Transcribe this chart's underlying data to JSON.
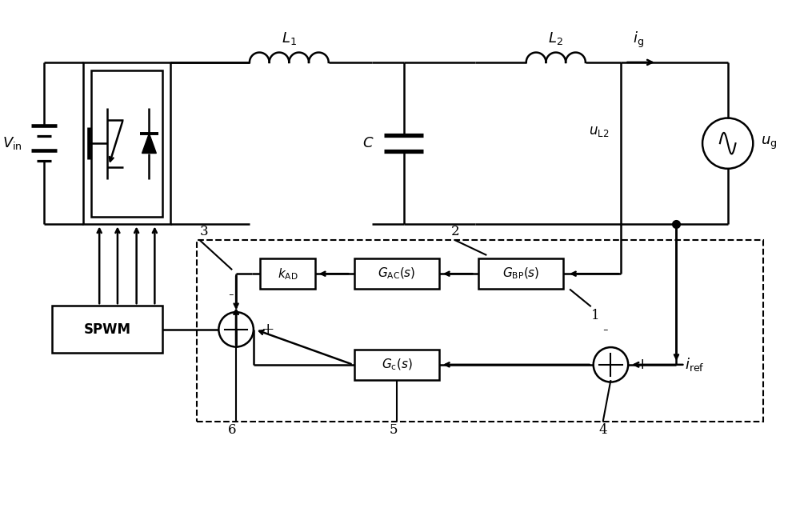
{
  "bg_color": "#ffffff",
  "line_color": "#000000",
  "lw": 1.8,
  "blw": 1.8,
  "fig_width": 10.0,
  "fig_height": 6.35,
  "dpi": 100
}
